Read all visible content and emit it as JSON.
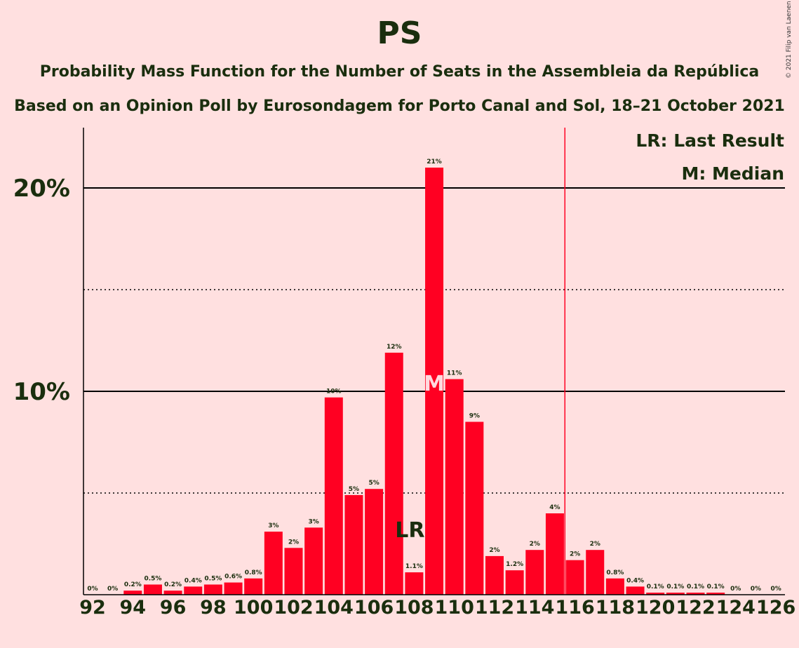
{
  "chart_data": {
    "type": "bar",
    "title": "PS",
    "subtitle": "Probability Mass Function for the Number of Seats in the Assembleia da República",
    "subtitle2": "Based on an Opinion Poll by Eurosondagem for Porto Canal and Sol, 18–21 October 2021",
    "copyright": "© 2021 Filip van Laenen",
    "legend": [
      "LR: Last Result",
      "M: Median"
    ],
    "legend_placement": "top-right",
    "x": [
      92,
      93,
      94,
      95,
      96,
      97,
      98,
      99,
      100,
      101,
      102,
      103,
      104,
      105,
      106,
      107,
      108,
      109,
      110,
      111,
      112,
      113,
      114,
      115,
      116,
      117,
      118,
      119,
      120,
      121,
      122,
      123,
      124,
      125,
      126
    ],
    "values": [
      0,
      0,
      0.2,
      0.5,
      0.2,
      0.4,
      0.5,
      0.6,
      0.8,
      3.1,
      2.3,
      3.3,
      9.7,
      4.9,
      5.2,
      11.9,
      1.1,
      21.0,
      10.6,
      8.5,
      1.9,
      1.2,
      2.2,
      4.0,
      1.7,
      2.2,
      0.8,
      0.4,
      0.1,
      0.1,
      0.1,
      0.1,
      0,
      0,
      0
    ],
    "labels": [
      "0%",
      "0%",
      "0.2%",
      "0.5%",
      "0.2%",
      "0.4%",
      "0.5%",
      "0.6%",
      "0.8%",
      "3%",
      "2%",
      "3%",
      "10%",
      "5%",
      "5%",
      "12%",
      "1.1%",
      "21%",
      "11%",
      "9%",
      "2%",
      "1.2%",
      "2%",
      "4%",
      "2%",
      "2%",
      "0.8%",
      "0.4%",
      "0.1%",
      "0.1%",
      "0.1%",
      "0.1%",
      "0%",
      "0%",
      "0%"
    ],
    "x_tick_labels": [
      "92",
      "94",
      "96",
      "98",
      "100",
      "102",
      "104",
      "106",
      "108",
      "110",
      "112",
      "114",
      "116",
      "118",
      "120",
      "122",
      "124",
      "126"
    ],
    "y_tick_labels": [
      "10%",
      "20%"
    ],
    "ylim": [
      0,
      23
    ],
    "y_gridlines": [
      5,
      10,
      15,
      20
    ],
    "last_result": 108,
    "last_result_label": "LR",
    "median": 109,
    "median_label": "M",
    "majority_line": 115.5,
    "colors": {
      "bar": "#FF0022",
      "background": "#FFE0E0",
      "text": "#1a2e0e",
      "grid": "#000000"
    }
  }
}
